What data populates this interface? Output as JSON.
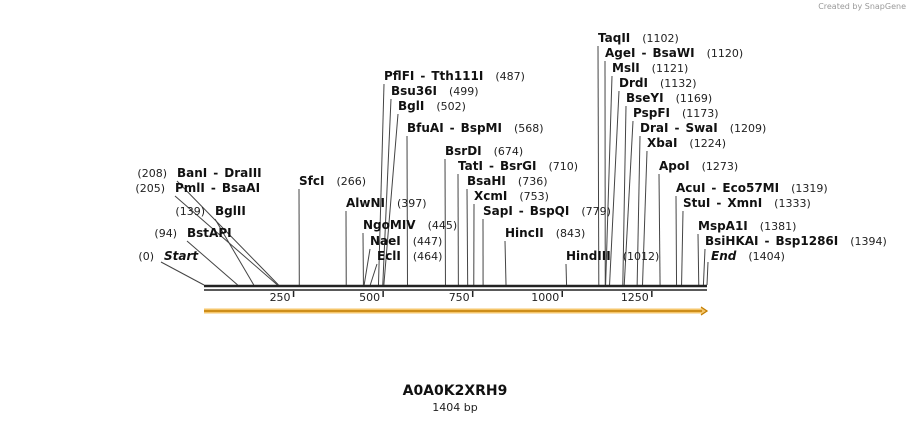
{
  "credit": "Created by SnapGene",
  "title": "A0A0K2XRH9",
  "length_label": "1404 bp",
  "sequence_length": 1404,
  "ticks": [
    {
      "value": 250,
      "label": "250"
    },
    {
      "value": 500,
      "label": "500"
    },
    {
      "value": 750,
      "label": "750"
    },
    {
      "value": 1000,
      "label": "1000"
    },
    {
      "value": 1250,
      "label": "1250"
    }
  ],
  "colors": {
    "feature_fill": "#f5c66b",
    "feature_edge": "#c27c00",
    "backbone": "#222222"
  },
  "sites": [
    {
      "pos": 0,
      "names": [
        "Start"
      ],
      "pos_label": "(0)",
      "side": "left",
      "special": true
    },
    {
      "pos": 94,
      "names": [
        "BstAPI"
      ],
      "pos_label": "(94)",
      "side": "left"
    },
    {
      "pos": 139,
      "names": [
        "BglII"
      ],
      "pos_label": "(139)",
      "side": "left"
    },
    {
      "pos": 205,
      "names": [
        "PmlI",
        "BsaAI"
      ],
      "pos_label": "(205)",
      "side": "left"
    },
    {
      "pos": 208,
      "names": [
        "BanI",
        "DraIII"
      ],
      "pos_label": "(208)",
      "side": "left"
    },
    {
      "pos": 266,
      "names": [
        "SfcI"
      ],
      "pos_label": "(266)",
      "side": "right"
    },
    {
      "pos": 397,
      "names": [
        "AlwNI"
      ],
      "pos_label": "(397)",
      "side": "right"
    },
    {
      "pos": 445,
      "names": [
        "NgoMIV"
      ],
      "pos_label": "(445)",
      "side": "right"
    },
    {
      "pos": 447,
      "names": [
        "NaeI"
      ],
      "pos_label": "(447)",
      "side": "right"
    },
    {
      "pos": 464,
      "names": [
        "EclI"
      ],
      "pos_label": "(464)",
      "side": "right"
    },
    {
      "pos": 487,
      "names": [
        "PflFI",
        "Tth111I"
      ],
      "pos_label": "(487)",
      "side": "right"
    },
    {
      "pos": 499,
      "names": [
        "Bsu36I"
      ],
      "pos_label": "(499)",
      "side": "right"
    },
    {
      "pos": 502,
      "names": [
        "BglI"
      ],
      "pos_label": "(502)",
      "side": "right"
    },
    {
      "pos": 568,
      "names": [
        "BfuAI",
        "BspMI"
      ],
      "pos_label": "(568)",
      "side": "right"
    },
    {
      "pos": 674,
      "names": [
        "BsrDI"
      ],
      "pos_label": "(674)",
      "side": "right"
    },
    {
      "pos": 710,
      "names": [
        "TatI",
        "BsrGI"
      ],
      "pos_label": "(710)",
      "side": "right"
    },
    {
      "pos": 736,
      "names": [
        "BsaHI"
      ],
      "pos_label": "(736)",
      "side": "right"
    },
    {
      "pos": 753,
      "names": [
        "XcmI"
      ],
      "pos_label": "(753)",
      "side": "right"
    },
    {
      "pos": 779,
      "names": [
        "SapI",
        "BspQI"
      ],
      "pos_label": "(779)",
      "side": "right"
    },
    {
      "pos": 843,
      "names": [
        "HincII"
      ],
      "pos_label": "(843)",
      "side": "right"
    },
    {
      "pos": 1012,
      "names": [
        "HindIII"
      ],
      "pos_label": "(1012)",
      "side": "right"
    },
    {
      "pos": 1102,
      "names": [
        "TaqII"
      ],
      "pos_label": "(1102)",
      "side": "right"
    },
    {
      "pos": 1120,
      "names": [
        "AgeI",
        "BsaWI"
      ],
      "pos_label": "(1120)",
      "side": "right"
    },
    {
      "pos": 1121,
      "names": [
        "MslI"
      ],
      "pos_label": "(1121)",
      "side": "right"
    },
    {
      "pos": 1132,
      "names": [
        "DrdI"
      ],
      "pos_label": "(1132)",
      "side": "right"
    },
    {
      "pos": 1169,
      "names": [
        "BseYI"
      ],
      "pos_label": "(1169)",
      "side": "right"
    },
    {
      "pos": 1173,
      "names": [
        "PspFI"
      ],
      "pos_label": "(1173)",
      "side": "right"
    },
    {
      "pos": 1209,
      "names": [
        "DraI",
        "SwaI"
      ],
      "pos_label": "(1209)",
      "side": "right"
    },
    {
      "pos": 1224,
      "names": [
        "XbaI"
      ],
      "pos_label": "(1224)",
      "side": "right"
    },
    {
      "pos": 1273,
      "names": [
        "ApoI"
      ],
      "pos_label": "(1273)",
      "side": "right"
    },
    {
      "pos": 1319,
      "names": [
        "AcuI",
        "Eco57MI"
      ],
      "pos_label": "(1319)",
      "side": "right"
    },
    {
      "pos": 1333,
      "names": [
        "StuI",
        "XmnI"
      ],
      "pos_label": "(1333)",
      "side": "right"
    },
    {
      "pos": 1381,
      "names": [
        "MspA1I"
      ],
      "pos_label": "(1381)",
      "side": "right"
    },
    {
      "pos": 1394,
      "names": [
        "BsiHKAI",
        "Bsp1286I"
      ],
      "pos_label": "(1394)",
      "side": "right"
    },
    {
      "pos": 1404,
      "names": [
        "End"
      ],
      "pos_label": "(1404)",
      "side": "right",
      "special": true
    }
  ]
}
